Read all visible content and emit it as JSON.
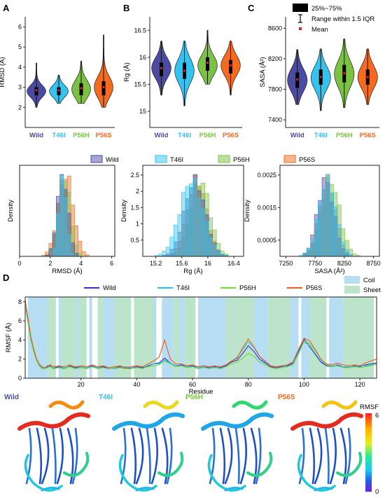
{
  "colors": {
    "wild": "#4B4BA3",
    "t46i": "#33C3EE",
    "p56h": "#7CC242",
    "p56s": "#F26B21",
    "mean_dot": "#E8212B",
    "coil": "#B7DDF2",
    "sheet": "#BCE4CB",
    "rmsf_wild": "#3C2BD9",
    "rmsf_t46i": "#2BBFF0",
    "rmsf_p56h": "#6FDB2A",
    "rmsf_p56s": "#EE5A1B"
  },
  "groups": [
    "Wild",
    "T46I",
    "P56H",
    "P56S"
  ],
  "panel_labels": {
    "a": "A",
    "b": "B",
    "c": "C",
    "d": "D"
  },
  "violin_legend": {
    "box": "25%~75%",
    "whisker": "Range within 1.5 IQR",
    "mean": "Mean"
  },
  "chart_data": [
    {
      "id": "rmsd_violin",
      "type": "violin",
      "ylabel": "RMSD (Å)",
      "ylim": [
        1,
        6.5
      ],
      "yticks": [
        2,
        3,
        4,
        5,
        6
      ],
      "categories": [
        "Wild",
        "T46I",
        "P56H",
        "P56S"
      ],
      "series": [
        {
          "min": 2.0,
          "q1": 2.6,
          "median": 2.8,
          "q3": 3.0,
          "max": 4.2,
          "mean": 2.85
        },
        {
          "min": 2.2,
          "q1": 2.6,
          "median": 2.8,
          "q3": 3.0,
          "max": 3.6,
          "mean": 2.85
        },
        {
          "min": 2.2,
          "q1": 2.6,
          "median": 2.9,
          "q3": 3.2,
          "max": 4.3,
          "mean": 2.95
        },
        {
          "min": 2.0,
          "q1": 2.6,
          "median": 3.0,
          "q3": 3.3,
          "max": 5.6,
          "mean": 3.0
        }
      ]
    },
    {
      "id": "rg_violin",
      "type": "violin",
      "ylabel": "Rg (Å)",
      "ylim": [
        14.7,
        16.75
      ],
      "yticks": [
        15.0,
        15.5,
        16.0,
        16.5
      ],
      "categories": [
        "Wild",
        "T46I",
        "P56H",
        "P56S"
      ],
      "series": [
        {
          "min": 15.3,
          "q1": 15.65,
          "median": 15.8,
          "q3": 15.9,
          "max": 16.3,
          "mean": 15.8
        },
        {
          "min": 15.1,
          "q1": 15.6,
          "median": 15.75,
          "q3": 15.9,
          "max": 16.3,
          "mean": 15.75
        },
        {
          "min": 15.5,
          "q1": 15.75,
          "median": 15.85,
          "q3": 16.0,
          "max": 16.5,
          "mean": 15.9
        },
        {
          "min": 15.3,
          "q1": 15.7,
          "median": 15.85,
          "q3": 15.95,
          "max": 16.3,
          "mean": 15.85
        }
      ]
    },
    {
      "id": "sasa_violin",
      "type": "violin",
      "ylabel": "SASA (Å²)",
      "ylim": [
        7300,
        8750
      ],
      "yticks": [
        7400,
        7800,
        8200,
        8600
      ],
      "categories": [
        "Wild",
        "T46I",
        "P56H",
        "P56S"
      ],
      "series": [
        {
          "min": 7600,
          "q1": 7820,
          "median": 7920,
          "q3": 8020,
          "max": 8320,
          "mean": 7930
        },
        {
          "min": 7520,
          "q1": 7860,
          "median": 7950,
          "q3": 8060,
          "max": 8330,
          "mean": 7960
        },
        {
          "min": 7560,
          "q1": 7890,
          "median": 8000,
          "q3": 8120,
          "max": 8460,
          "mean": 8010
        },
        {
          "min": 7600,
          "q1": 7860,
          "median": 7960,
          "q3": 8060,
          "max": 8330,
          "mean": 7960
        }
      ]
    },
    {
      "id": "rmsd_hist",
      "type": "histogram",
      "xlabel": "RMSD (Å)",
      "ylabel": "Density",
      "xlim": [
        0,
        6.2
      ],
      "xticks": [
        0,
        2,
        4,
        6
      ],
      "series": [
        {
          "name": "Wild",
          "center": 2.8,
          "sd": 0.35
        },
        {
          "name": "T46I",
          "center": 2.8,
          "sd": 0.25
        },
        {
          "name": "P56H",
          "center": 2.9,
          "sd": 0.4
        },
        {
          "name": "P56S",
          "center": 3.0,
          "sd": 0.5
        }
      ]
    },
    {
      "id": "rg_hist",
      "type": "histogram",
      "xlabel": "Rg (Å)",
      "ylabel": "Density",
      "xlim": [
        15.0,
        16.55
      ],
      "xticks": [
        15.2,
        15.6,
        16.0,
        16.4
      ],
      "yticks": [
        0.5,
        1.0,
        1.5,
        2.0,
        2.5
      ],
      "series": [
        {
          "name": "Wild",
          "center": 15.8,
          "sd": 0.16
        },
        {
          "name": "T46I",
          "center": 15.75,
          "sd": 0.18
        },
        {
          "name": "P56H",
          "center": 15.88,
          "sd": 0.15
        },
        {
          "name": "P56S",
          "center": 15.83,
          "sd": 0.15
        }
      ]
    },
    {
      "id": "sasa_hist",
      "type": "histogram",
      "xlabel": "SASA (Å²)",
      "ylabel": "Density",
      "xlim": [
        7150,
        8850
      ],
      "xticks": [
        7250,
        7750,
        8250,
        8750
      ],
      "yticks": [
        0.0005,
        0.0015,
        0.0025
      ],
      "series": [
        {
          "name": "Wild",
          "center": 7930,
          "sd": 140
        },
        {
          "name": "T46I",
          "center": 7960,
          "sd": 150
        },
        {
          "name": "P56H",
          "center": 8010,
          "sd": 160
        },
        {
          "name": "P56S",
          "center": 7960,
          "sd": 140
        }
      ]
    },
    {
      "id": "rmsf_line",
      "type": "line",
      "xlabel": "Residue",
      "ylabel": "RMSF (Å)",
      "xlim": [
        0,
        126
      ],
      "ylim": [
        0,
        8.5
      ],
      "xticks": [
        20,
        40,
        60,
        80,
        100,
        120
      ],
      "yticks": [
        0,
        2,
        4,
        6,
        8
      ],
      "legend": [
        "Wild",
        "T46I",
        "P56H",
        "P56S"
      ],
      "region_legend": [
        "Coil",
        "Sheet"
      ],
      "coil_regions": [
        [
          1,
          8
        ],
        [
          12,
          13
        ],
        [
          18,
          19
        ],
        [
          23,
          24
        ],
        [
          28,
          32
        ],
        [
          44,
          47
        ],
        [
          49,
          53
        ],
        [
          55,
          57
        ],
        [
          62,
          72
        ],
        [
          82,
          87
        ],
        [
          95,
          98
        ],
        [
          99,
          103
        ],
        [
          109,
          114
        ]
      ],
      "sheet_regions": [
        [
          8,
          11
        ],
        [
          13,
          18
        ],
        [
          19,
          22
        ],
        [
          26,
          28
        ],
        [
          32,
          38
        ],
        [
          39,
          46
        ],
        [
          53,
          55
        ],
        [
          57,
          61
        ],
        [
          72,
          82
        ],
        [
          87,
          95
        ],
        [
          102,
          108
        ],
        [
          114,
          125
        ]
      ],
      "x": [
        0,
        1,
        2,
        3,
        4,
        5,
        6,
        7,
        8,
        9,
        10,
        12,
        14,
        16,
        18,
        20,
        22,
        24,
        26,
        28,
        30,
        32,
        34,
        36,
        38,
        40,
        42,
        44,
        46,
        48,
        50,
        52,
        54,
        56,
        58,
        60,
        62,
        64,
        66,
        68,
        70,
        72,
        74,
        76,
        78,
        80,
        82,
        84,
        86,
        88,
        90,
        92,
        94,
        96,
        98,
        100,
        102,
        104,
        106,
        108,
        110,
        112,
        114,
        116,
        118,
        120,
        122,
        124,
        126
      ],
      "series": [
        {
          "name": "Wild",
          "values": [
            8.0,
            6.0,
            4.2,
            3.0,
            2.0,
            1.4,
            1.1,
            1.0,
            1.2,
            1.3,
            1.0,
            1.2,
            1.0,
            1.3,
            1.1,
            1.2,
            1.1,
            1.3,
            1.1,
            1.2,
            1.0,
            1.1,
            1.2,
            1.0,
            1.1,
            1.2,
            1.1,
            1.3,
            1.5,
            1.6,
            2.1,
            1.6,
            1.3,
            1.4,
            1.2,
            1.3,
            1.1,
            1.2,
            1.1,
            1.2,
            1.1,
            1.3,
            1.7,
            1.9,
            2.6,
            3.4,
            2.8,
            2.0,
            1.6,
            1.2,
            1.1,
            1.2,
            1.3,
            1.6,
            2.8,
            4.1,
            3.3,
            2.5,
            1.7,
            1.3,
            1.2,
            1.4,
            1.2,
            1.1,
            1.3,
            1.2,
            1.4,
            1.5,
            1.6
          ]
        },
        {
          "name": "T46I",
          "values": [
            7.6,
            5.8,
            4.0,
            2.9,
            2.0,
            1.4,
            1.1,
            1.0,
            1.3,
            1.2,
            1.1,
            1.3,
            1.1,
            1.2,
            1.0,
            1.2,
            1.1,
            1.2,
            1.1,
            1.3,
            1.1,
            1.0,
            1.1,
            1.2,
            1.1,
            1.3,
            1.2,
            1.2,
            1.5,
            1.5,
            1.9,
            1.6,
            1.3,
            1.3,
            1.2,
            1.2,
            1.1,
            1.2,
            1.2,
            1.1,
            1.2,
            1.4,
            1.8,
            2.2,
            3.0,
            3.8,
            3.2,
            2.3,
            1.7,
            1.3,
            1.2,
            1.3,
            1.2,
            1.5,
            2.7,
            3.8,
            3.4,
            2.6,
            1.8,
            1.4,
            1.3,
            1.3,
            1.2,
            1.2,
            1.2,
            1.3,
            1.3,
            1.4,
            1.5
          ]
        },
        {
          "name": "P56H",
          "values": [
            7.8,
            5.9,
            4.0,
            2.8,
            1.9,
            1.3,
            1.0,
            1.0,
            1.1,
            1.2,
            1.0,
            1.1,
            1.0,
            1.2,
            1.0,
            1.1,
            1.0,
            1.2,
            1.0,
            1.1,
            1.0,
            1.1,
            1.1,
            1.0,
            1.0,
            1.1,
            1.0,
            1.2,
            1.3,
            1.4,
            1.8,
            1.5,
            1.2,
            1.3,
            1.1,
            1.2,
            1.0,
            1.1,
            1.0,
            1.1,
            1.0,
            1.2,
            1.5,
            1.7,
            2.1,
            2.6,
            2.3,
            1.7,
            1.4,
            1.1,
            1.0,
            1.1,
            1.2,
            1.4,
            2.5,
            3.9,
            3.6,
            2.9,
            2.0,
            1.4,
            1.2,
            1.3,
            1.1,
            1.1,
            1.2,
            1.1,
            1.2,
            1.3,
            1.5
          ]
        },
        {
          "name": "P56S",
          "values": [
            8.2,
            6.3,
            4.4,
            3.1,
            2.1,
            1.5,
            1.2,
            1.1,
            1.3,
            1.4,
            1.2,
            1.3,
            1.2,
            1.4,
            1.2,
            1.3,
            1.2,
            1.4,
            1.2,
            1.3,
            1.1,
            1.2,
            1.3,
            1.1,
            1.2,
            1.3,
            1.2,
            1.5,
            1.8,
            2.2,
            4.0,
            2.0,
            1.5,
            1.5,
            1.3,
            1.4,
            1.2,
            1.3,
            1.2,
            1.3,
            1.2,
            1.4,
            1.8,
            2.1,
            3.2,
            4.1,
            3.3,
            2.3,
            1.8,
            1.3,
            1.2,
            1.3,
            1.4,
            1.7,
            3.0,
            4.2,
            3.9,
            3.0,
            2.0,
            1.5,
            1.4,
            1.6,
            1.4,
            1.3,
            1.4,
            1.3,
            1.6,
            1.8,
            2.0
          ]
        }
      ]
    }
  ],
  "structures": {
    "labels": [
      "Wild",
      "T46I",
      "P56H",
      "P56S"
    ],
    "colorbar_title": "RMSF",
    "colorbar_max": "6",
    "colorbar_min": "0"
  }
}
